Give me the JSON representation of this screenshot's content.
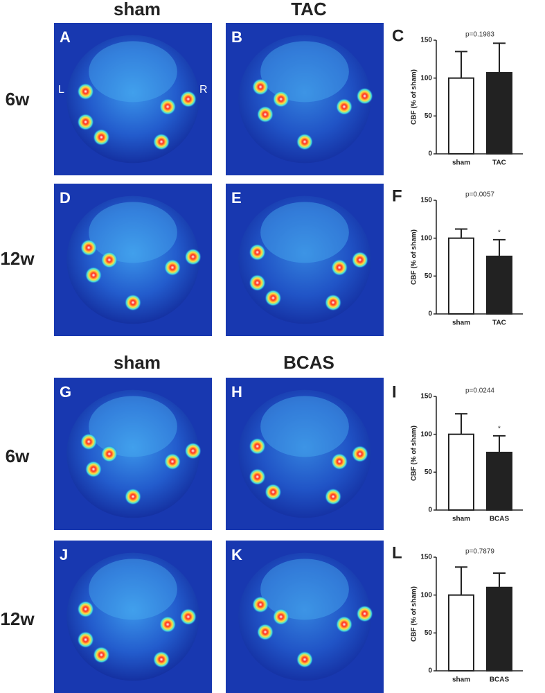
{
  "figure": {
    "groups": [
      {
        "column_headers": [
          "sham",
          "TAC"
        ],
        "rows": [
          {
            "label": "6w",
            "panels": [
              "A",
              "B"
            ]
          },
          {
            "label": "12w",
            "panels": [
              "D",
              "E"
            ]
          }
        ]
      },
      {
        "column_headers": [
          "sham",
          "BCAS"
        ],
        "rows": [
          {
            "label": "6w",
            "panels": [
              "G",
              "H"
            ]
          },
          {
            "label": "12w",
            "panels": [
              "J",
              "K"
            ]
          }
        ]
      }
    ],
    "orientation_labels": [
      "L",
      "R"
    ]
  },
  "chart_data": [
    {
      "type": "bar",
      "panel": "C",
      "annotation": "p=0.1983",
      "ylabel": "CBF (% of sham)",
      "categories": [
        "sham",
        "TAC"
      ],
      "values": [
        100,
        107
      ],
      "errors": [
        35,
        39
      ],
      "significance": [
        null,
        null
      ],
      "colors": [
        "#ffffff",
        "#222222"
      ],
      "ylim": [
        0,
        150
      ],
      "yticks": [
        0,
        50,
        100,
        150
      ]
    },
    {
      "type": "bar",
      "panel": "F",
      "annotation": "p=0.0057",
      "ylabel": "CBF (% of sham)",
      "categories": [
        "sham",
        "TAC"
      ],
      "values": [
        100,
        76
      ],
      "errors": [
        12,
        22
      ],
      "significance": [
        null,
        "*"
      ],
      "colors": [
        "#ffffff",
        "#222222"
      ],
      "ylim": [
        0,
        150
      ],
      "yticks": [
        0,
        50,
        100,
        150
      ]
    },
    {
      "type": "bar",
      "panel": "I",
      "annotation": "p=0.0244",
      "ylabel": "CBF (% of sham)",
      "categories": [
        "sham",
        "BCAS"
      ],
      "values": [
        100,
        76
      ],
      "errors": [
        27,
        22
      ],
      "significance": [
        null,
        "*"
      ],
      "colors": [
        "#ffffff",
        "#222222"
      ],
      "ylim": [
        0,
        150
      ],
      "yticks": [
        0,
        50,
        100,
        150
      ]
    },
    {
      "type": "bar",
      "panel": "L",
      "annotation": "p=0.7879",
      "ylabel": "CBF (% of sham)",
      "categories": [
        "sham",
        "BCAS"
      ],
      "values": [
        100,
        110
      ],
      "errors": [
        37,
        19
      ],
      "significance": [
        null,
        null
      ],
      "colors": [
        "#ffffff",
        "#222222"
      ],
      "ylim": [
        0,
        150
      ],
      "yticks": [
        0,
        50,
        100,
        150
      ]
    }
  ]
}
